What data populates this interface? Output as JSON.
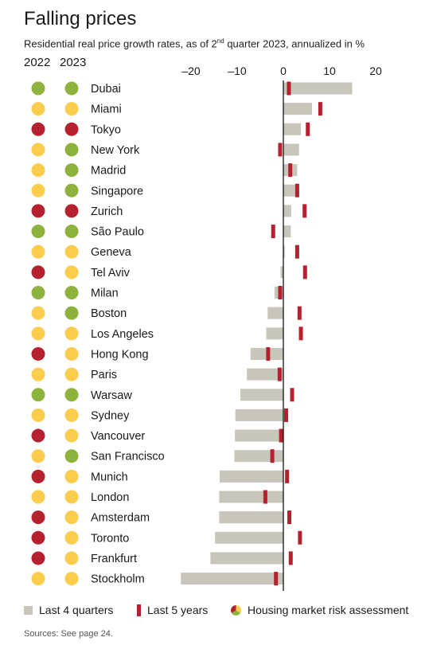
{
  "title": "Falling prices",
  "subtitle_pre": "Residential real price growth rates, as of 2",
  "subtitle_sup": "nd",
  "subtitle_post": " quarter 2023, annualized in %",
  "year_labels": [
    "2022",
    "2023"
  ],
  "colors": {
    "bar": "#c8c6ba",
    "marker": "#b5212f",
    "green": "#8db33e",
    "yellow": "#fccc4d",
    "red": "#b5212f",
    "axis": "#000000"
  },
  "legend": {
    "last4": "Last 4 quarters",
    "last5": "Last 5 years",
    "risk": "Housing market risk assessment"
  },
  "sources": "Sources: See page 24.",
  "chart_data": {
    "type": "bar",
    "orientation": "horizontal",
    "x_ticks": [
      "–20",
      "–10",
      "0",
      "10",
      "20"
    ],
    "x_tick_values": [
      -20,
      -10,
      0,
      10,
      20
    ],
    "xlim": [
      -23,
      22
    ],
    "categories": [
      "Dubai",
      "Miami",
      "Tokyo",
      "New York",
      "Madrid",
      "Singapore",
      "Zurich",
      "São Paulo",
      "Geneva",
      "Tel Aviv",
      "Milan",
      "Boston",
      "Los Angeles",
      "Hong Kong",
      "Paris",
      "Warsaw",
      "Sydney",
      "Vancouver",
      "San Francisco",
      "Munich",
      "London",
      "Amsterdam",
      "Toronto",
      "Frankfurt",
      "Stockholm"
    ],
    "series": [
      {
        "name": "Last 4 quarters",
        "values": [
          14.9,
          6.2,
          3.8,
          3.4,
          3.0,
          2.7,
          1.7,
          1.6,
          0.3,
          -0.6,
          -1.9,
          -3.4,
          -3.7,
          -7.1,
          -7.9,
          -9.3,
          -10.4,
          -10.5,
          -10.6,
          -13.8,
          -13.9,
          -13.9,
          -14.8,
          -15.8,
          -22.2
        ]
      },
      {
        "name": "Last 5 years",
        "values": [
          1.2,
          8.0,
          5.3,
          -0.7,
          1.5,
          3.0,
          4.6,
          -2.2,
          3.0,
          4.7,
          -0.7,
          3.5,
          3.8,
          -3.3,
          -0.8,
          1.9,
          0.6,
          -0.5,
          -2.4,
          0.8,
          -3.9,
          1.3,
          3.6,
          1.6,
          -1.6
        ]
      }
    ],
    "risk_2022": [
      "green",
      "yellow",
      "red",
      "yellow",
      "yellow",
      "yellow",
      "red",
      "green",
      "yellow",
      "red",
      "green",
      "yellow",
      "yellow",
      "red",
      "yellow",
      "green",
      "yellow",
      "red",
      "yellow",
      "red",
      "yellow",
      "red",
      "red",
      "red",
      "yellow"
    ],
    "risk_2023": [
      "green",
      "yellow",
      "red",
      "green",
      "green",
      "green",
      "red",
      "green",
      "yellow",
      "yellow",
      "green",
      "green",
      "yellow",
      "yellow",
      "yellow",
      "green",
      "yellow",
      "yellow",
      "green",
      "yellow",
      "yellow",
      "yellow",
      "yellow",
      "yellow",
      "yellow"
    ]
  }
}
